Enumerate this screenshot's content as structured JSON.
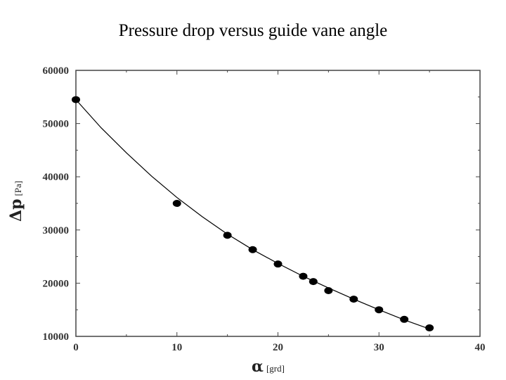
{
  "title": "Pressure drop versus guide vane angle",
  "chart_data": {
    "type": "scatter",
    "title": "Pressure drop versus guide vane angle",
    "xlabel": {
      "symbol": "α",
      "unit": "[grd]"
    },
    "ylabel": {
      "symbol": "Δp",
      "unit": "[Pa]"
    },
    "xlim": [
      0,
      40
    ],
    "ylim": [
      10000,
      60000
    ],
    "xticks": [
      0,
      10,
      20,
      30,
      40
    ],
    "yticks": [
      10000,
      20000,
      30000,
      40000,
      50000,
      60000
    ],
    "grid": false,
    "series": [
      {
        "x": [
          0,
          10,
          15,
          17.5,
          20,
          22.5,
          23.5,
          25,
          27.5,
          30,
          32.5,
          35
        ],
        "y": [
          54500,
          35000,
          29000,
          26300,
          23600,
          21300,
          20300,
          18600,
          17000,
          15000,
          13200,
          11600
        ]
      }
    ],
    "fit_curve": {
      "x": [
        0,
        2.5,
        5,
        7.5,
        10,
        12.5,
        15,
        17.5,
        20,
        22.5,
        25,
        27.5,
        30,
        32.5,
        35
      ],
      "y": [
        54500,
        49200,
        44500,
        40100,
        36100,
        32500,
        29200,
        26300,
        23700,
        21300,
        19100,
        17000,
        15000,
        13100,
        11400
      ]
    },
    "colors": {
      "marker": "#000000",
      "line": "#000000",
      "axes": "#444444"
    }
  }
}
